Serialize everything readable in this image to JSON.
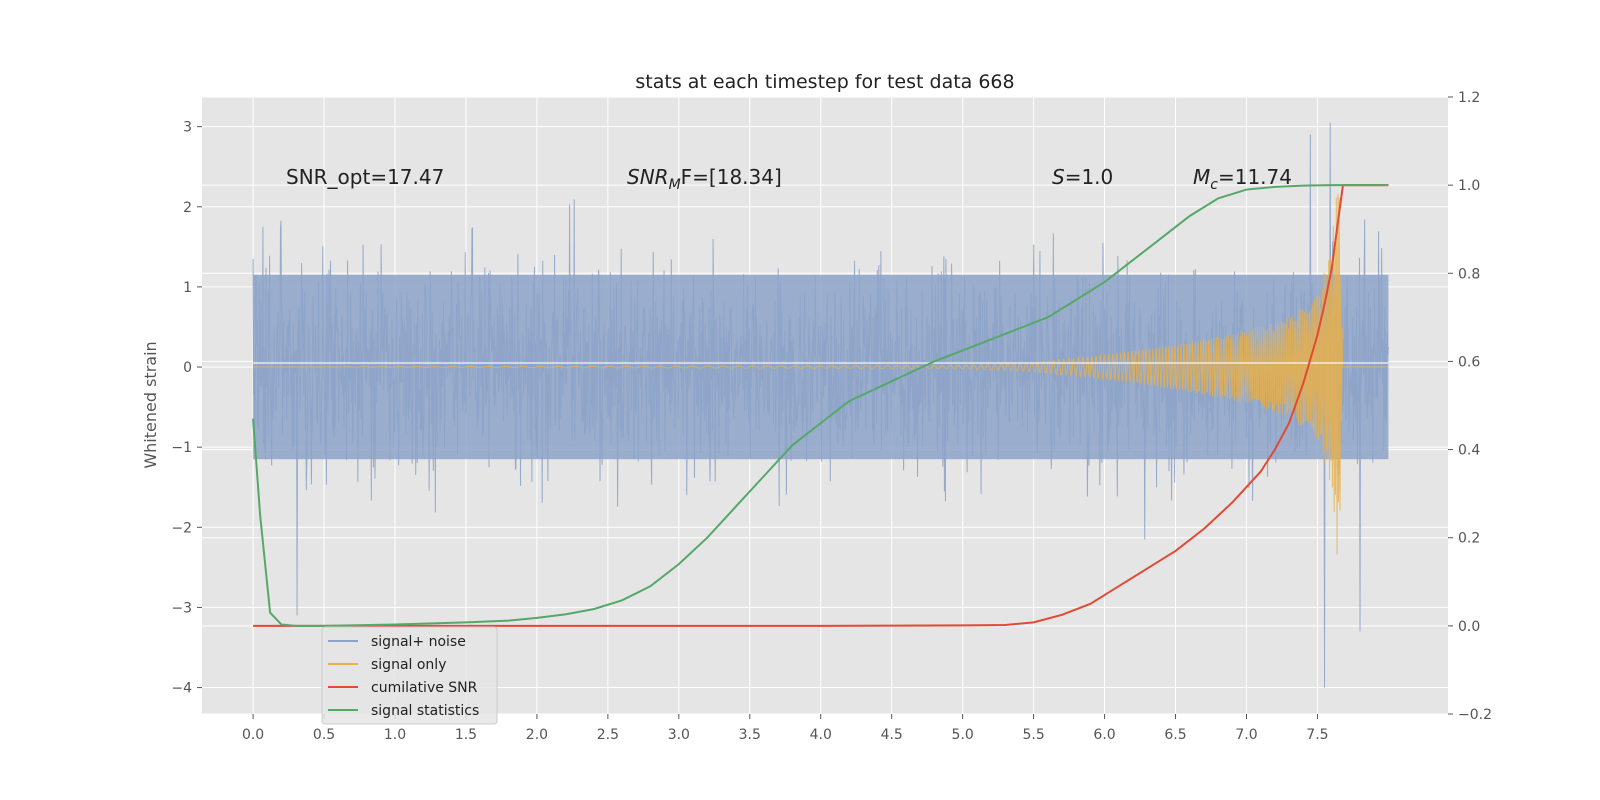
{
  "chart_data": {
    "type": "line",
    "title": "stats at each timestep for test data 668",
    "ylabel": "Whitened strain",
    "xlim": [
      -0.36,
      8.42
    ],
    "ylim": [
      -4.33,
      3.37
    ],
    "y2lim": [
      -0.2,
      1.2
    ],
    "x_ticks": [
      "0.0",
      "0.5",
      "1.0",
      "1.5",
      "2.0",
      "2.5",
      "3.0",
      "3.5",
      "4.0",
      "4.5",
      "5.0",
      "5.5",
      "6.0",
      "6.5",
      "7.0",
      "7.5"
    ],
    "y_ticks": [
      "3",
      "2",
      "1",
      "0",
      "−1",
      "−2",
      "−3",
      "−4"
    ],
    "y2_ticks": [
      "1.2",
      "1.0",
      "0.8",
      "0.6",
      "0.4",
      "0.2",
      "0.0",
      "−0.2"
    ],
    "grid": true,
    "legend_placement": "lower-left",
    "annotations": {
      "snr_opt": "SNR_opt=17.47",
      "snr_mf_main": "SNR",
      "snr_mf_sub": "M",
      "snr_mf_rest": "F=[18.34]",
      "s_main": "S",
      "s_rest": "=1.0",
      "mc_main": "M",
      "mc_sub": "c",
      "mc_rest": "=11.74"
    },
    "series": [
      {
        "name": "signal+ noise",
        "color": "#8da3c8",
        "axis": "left",
        "amplitude_envelope": 1.15,
        "peak_min": -4.0,
        "peak_max": 3.05,
        "x_range": [
          0.0,
          8.0
        ]
      },
      {
        "name": "signal only",
        "color": "#e8b04a",
        "axis": "left",
        "x_range": [
          0.0,
          7.68
        ],
        "envelope": {
          "x": [
            0.0,
            5.0,
            5.5,
            6.0,
            6.5,
            7.0,
            7.3,
            7.5,
            7.6,
            7.65,
            7.68
          ],
          "y": [
            0.0,
            0.02,
            0.06,
            0.15,
            0.28,
            0.45,
            0.62,
            0.9,
            1.5,
            2.6,
            0.0
          ]
        }
      },
      {
        "name": "cumilative SNR",
        "color": "#e24a33",
        "axis": "right",
        "x": [
          0.0,
          1.0,
          2.0,
          3.0,
          4.0,
          5.0,
          5.3,
          5.5,
          5.7,
          5.9,
          6.1,
          6.3,
          6.5,
          6.7,
          6.9,
          7.1,
          7.2,
          7.3,
          7.4,
          7.5,
          7.55,
          7.6,
          7.65,
          7.68,
          8.0
        ],
        "y": [
          0.0,
          0.0,
          0.0,
          0.0,
          0.0,
          0.001,
          0.002,
          0.008,
          0.025,
          0.05,
          0.09,
          0.13,
          0.17,
          0.22,
          0.28,
          0.35,
          0.4,
          0.46,
          0.55,
          0.66,
          0.73,
          0.81,
          0.93,
          1.0,
          1.0
        ]
      },
      {
        "name": "signal statistics",
        "color": "#55a868",
        "axis": "right",
        "x": [
          0.0,
          0.05,
          0.12,
          0.2,
          0.3,
          0.5,
          1.0,
          1.5,
          1.8,
          2.0,
          2.2,
          2.4,
          2.6,
          2.8,
          3.0,
          3.2,
          3.4,
          3.6,
          3.8,
          4.0,
          4.2,
          4.4,
          4.6,
          4.8,
          5.0,
          5.2,
          5.4,
          5.6,
          5.8,
          6.0,
          6.2,
          6.4,
          6.6,
          6.8,
          7.0,
          7.2,
          7.4,
          7.6,
          7.7,
          8.0
        ],
        "y": [
          0.47,
          0.25,
          0.03,
          0.003,
          0.0,
          0.0,
          0.003,
          0.008,
          0.012,
          0.018,
          0.026,
          0.038,
          0.058,
          0.09,
          0.14,
          0.2,
          0.27,
          0.34,
          0.41,
          0.46,
          0.51,
          0.54,
          0.57,
          0.6,
          0.625,
          0.65,
          0.675,
          0.7,
          0.74,
          0.78,
          0.83,
          0.88,
          0.93,
          0.97,
          0.99,
          0.996,
          0.999,
          1.0,
          1.0,
          1.0
        ]
      }
    ]
  }
}
